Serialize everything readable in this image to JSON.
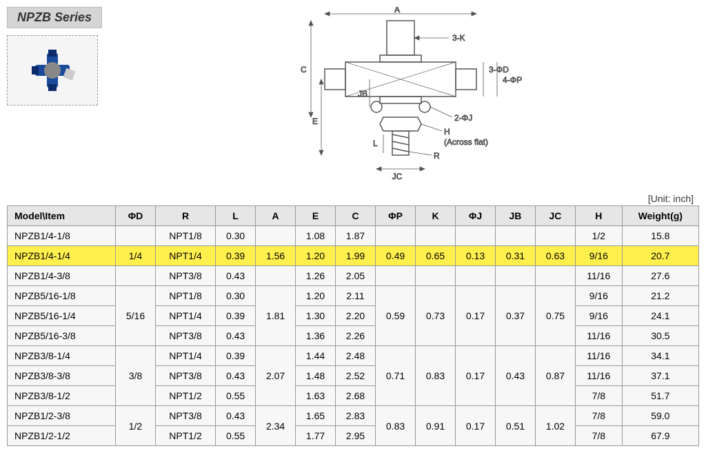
{
  "series_name": "NPZB Series",
  "unit_label": "[Unit: inch]",
  "diagram": {
    "labels": {
      "phiD": "ΦD",
      "R": "R",
      "L": "L",
      "A": "A",
      "E": "E",
      "C": "C",
      "phiP": "ΦP",
      "K": "K",
      "phiJ": "ΦJ",
      "JB": "JB",
      "JC": "JC",
      "H": "H",
      "threeK": "3-K",
      "threePhiD": "3-ΦD",
      "fourPhiP": "4-ΦP",
      "twoPhiJ": "2-ΦJ",
      "acrossFlat": "(Across flat)"
    }
  },
  "table": {
    "columns": [
      "Model\\Item",
      "ΦD",
      "R",
      "L",
      "A",
      "E",
      "C",
      "ΦP",
      "K",
      "ΦJ",
      "JB",
      "JC",
      "H",
      "Weight(g)"
    ],
    "groups": [
      {
        "phiD": "1/4",
        "A": "1.56",
        "phiP": "0.49",
        "K": "0.65",
        "phiJ": "0.13",
        "JB": "0.31",
        "JC": "0.63",
        "rows": [
          {
            "model": "NPZB1/4-1/8",
            "R": "NPT1/8",
            "L": "0.30",
            "E": "1.08",
            "C": "1.87",
            "H": "1/2",
            "W": "15.8",
            "highlight": false
          },
          {
            "model": "NPZB1/4-1/4",
            "R": "NPT1/4",
            "L": "0.39",
            "E": "1.20",
            "C": "1.99",
            "H": "9/16",
            "W": "20.7",
            "highlight": true
          },
          {
            "model": "NPZB1/4-3/8",
            "R": "NPT3/8",
            "L": "0.43",
            "E": "1.26",
            "C": "2.05",
            "H": "11/16",
            "W": "27.6",
            "highlight": false
          }
        ]
      },
      {
        "phiD": "5/16",
        "A": "1.81",
        "phiP": "0.59",
        "K": "0.73",
        "phiJ": "0.17",
        "JB": "0.37",
        "JC": "0.75",
        "rows": [
          {
            "model": "NPZB5/16-1/8",
            "R": "NPT1/8",
            "L": "0.30",
            "E": "1.20",
            "C": "2.11",
            "H": "9/16",
            "W": "21.2",
            "highlight": false
          },
          {
            "model": "NPZB5/16-1/4",
            "R": "NPT1/4",
            "L": "0.39",
            "E": "1.30",
            "C": "2.20",
            "H": "9/16",
            "W": "24.1",
            "highlight": false
          },
          {
            "model": "NPZB5/16-3/8",
            "R": "NPT3/8",
            "L": "0.43",
            "E": "1.36",
            "C": "2.26",
            "H": "11/16",
            "W": "30.5",
            "highlight": false
          }
        ]
      },
      {
        "phiD": "3/8",
        "A": "2.07",
        "phiP": "0.71",
        "K": "0.83",
        "phiJ": "0.17",
        "JB": "0.43",
        "JC": "0.87",
        "rows": [
          {
            "model": "NPZB3/8-1/4",
            "R": "NPT1/4",
            "L": "0.39",
            "E": "1.44",
            "C": "2.48",
            "H": "11/16",
            "W": "34.1",
            "highlight": false
          },
          {
            "model": "NPZB3/8-3/8",
            "R": "NPT3/8",
            "L": "0.43",
            "E": "1.48",
            "C": "2.52",
            "H": "11/16",
            "W": "37.1",
            "highlight": false
          },
          {
            "model": "NPZB3/8-1/2",
            "R": "NPT1/2",
            "L": "0.55",
            "E": "1.63",
            "C": "2.68",
            "H": "7/8",
            "W": "51.7",
            "highlight": false
          }
        ]
      },
      {
        "phiD": "1/2",
        "A": "2.34",
        "phiP": "0.83",
        "K": "0.91",
        "phiJ": "0.17",
        "JB": "0.51",
        "JC": "1.02",
        "rows": [
          {
            "model": "NPZB1/2-3/8",
            "R": "NPT3/8",
            "L": "0.43",
            "E": "1.65",
            "C": "2.83",
            "H": "7/8",
            "W": "59.0",
            "highlight": false
          },
          {
            "model": "NPZB1/2-1/2",
            "R": "NPT1/2",
            "L": "0.55",
            "E": "1.77",
            "C": "2.95",
            "H": "7/8",
            "W": "67.9",
            "highlight": false
          }
        ]
      }
    ]
  }
}
